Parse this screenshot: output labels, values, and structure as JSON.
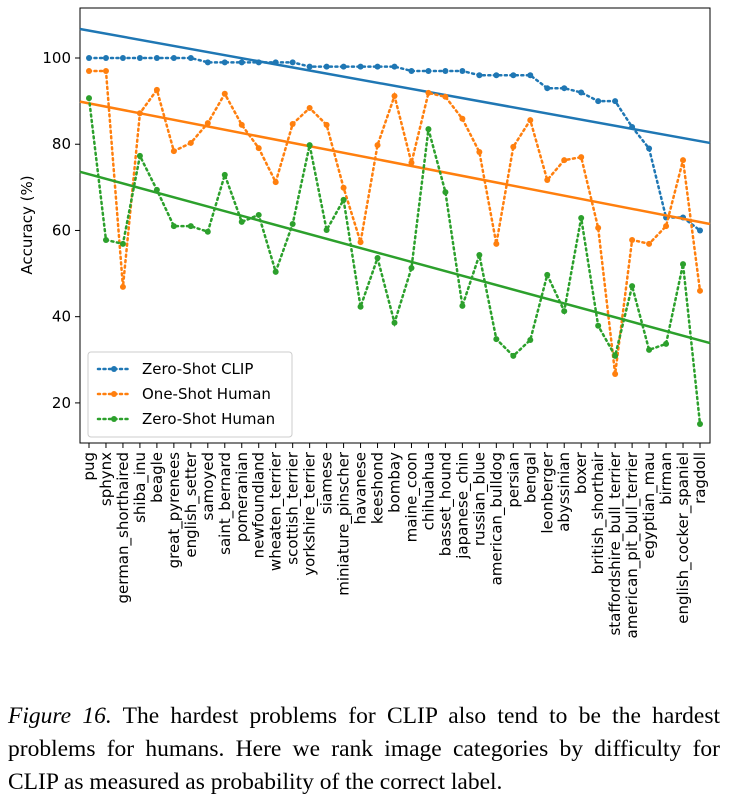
{
  "chart_data": {
    "type": "line",
    "y_label": "Accuracy (%)",
    "categories": [
      "pug",
      "sphynx",
      "german_shorthaired",
      "shiba_inu",
      "beagle",
      "great_pyrenees",
      "english_setter",
      "samoyed",
      "saint_bernard",
      "pomeranian",
      "newfoundland",
      "wheaten_terrier",
      "scottish_terrier",
      "yorkshire_terrier",
      "siamese",
      "miniature_pinscher",
      "havanese",
      "keeshond",
      "bombay",
      "maine_coon",
      "chihuahua",
      "basset_hound",
      "japanese_chin",
      "russian_blue",
      "american_bulldog",
      "persian",
      "bengal",
      "leonberger",
      "abyssinian",
      "boxer",
      "british_shorthair",
      "staffordshire_bull_terrier",
      "american_pit_bull_terrier",
      "egyptian_mau",
      "birman",
      "english_cocker_spaniel",
      "ragdoll"
    ],
    "series": [
      {
        "name": "Zero-Shot CLIP",
        "color": "#1f77b4",
        "values": [
          100,
          100,
          100,
          100,
          100,
          100,
          100,
          99,
          99,
          99,
          99,
          99,
          99,
          98,
          98,
          98,
          98,
          98,
          98,
          97,
          97,
          97,
          97,
          96,
          96,
          96,
          96,
          93,
          93,
          92,
          90,
          90,
          84,
          79,
          63,
          63,
          60
        ]
      },
      {
        "name": "One-Shot Human",
        "color": "#ff7f0e",
        "values": [
          97,
          97,
          46.9,
          87.2,
          92.6,
          78.4,
          80.3,
          84.9,
          91.7,
          84.5,
          79.1,
          71.2,
          84.7,
          88.4,
          84.5,
          69.9,
          57.3,
          79.8,
          91.2,
          75.7,
          91.9,
          91,
          85.9,
          78.2,
          56.9,
          79.4,
          85.6,
          71.7,
          76.3,
          77,
          60.6,
          26.7,
          57.8,
          56.9,
          61,
          76.3,
          46
        ]
      },
      {
        "name": "Zero-Shot Human",
        "color": "#2ca02c",
        "values": [
          90.7,
          57.8,
          56.9,
          77.3,
          69.4,
          61,
          61,
          59.7,
          72.9,
          62,
          63.6,
          50.4,
          61.5,
          79.8,
          60.1,
          67.1,
          42.3,
          53.6,
          38.6,
          51.3,
          83.5,
          68.9,
          42.5,
          54.3,
          34.8,
          30.9,
          34.6,
          49.7,
          41.3,
          62.9,
          37.9,
          30.9,
          47.1,
          32.3,
          33.7,
          52.2,
          15.1
        ]
      }
    ],
    "trend_lines": true,
    "ylim": [
      10.7,
      111.6
    ],
    "yticks": [
      20,
      40,
      60,
      80,
      100
    ],
    "legend": "lower left"
  },
  "caption": {
    "label": "Figure 16.",
    "text": "The hardest problems for CLIP also tend to be the hardest problems for humans. Here we rank image categories by difficulty for CLIP as measured as probability of the correct label."
  }
}
